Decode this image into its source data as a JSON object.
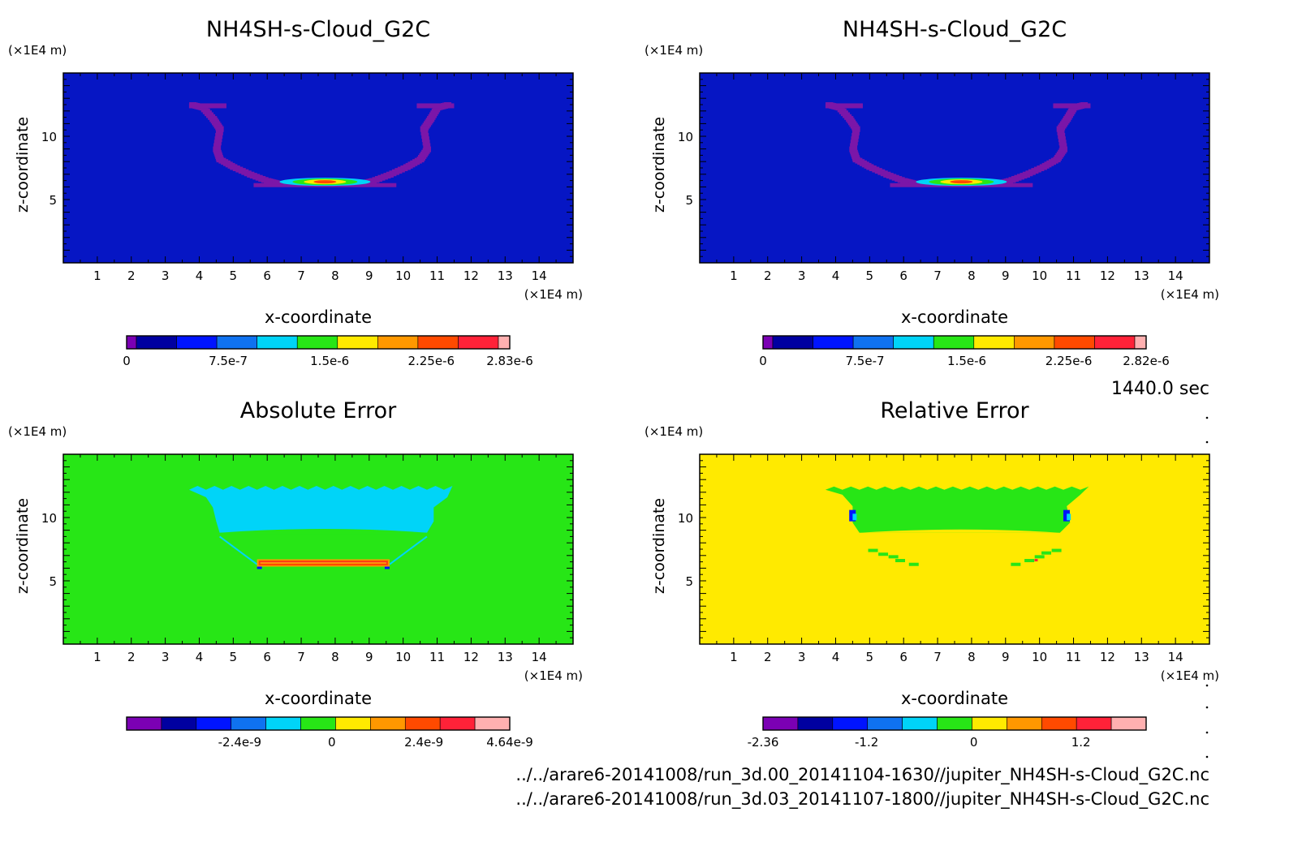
{
  "time_label": "1440.0 sec",
  "files": [
    "../../arare6-20141008/run_3d.00_20141104-1630//jupiter_NH4SH-s-Cloud_G2C.nc",
    "../../arare6-20141008/run_3d.03_20141107-1800//jupiter_NH4SH-s-Cloud_G2C.nc"
  ],
  "colors": {
    "palette": [
      "#7b00b4",
      "#0000a0",
      "#0014ff",
      "#0f72f0",
      "#00d4f8",
      "#27e616",
      "#ffea00",
      "#ff9800",
      "#ff4a00",
      "#ff2238",
      "#ffb0b0"
    ],
    "background_blue": "#0616c4",
    "background_green": "#27e616",
    "background_yellow": "#ffea00",
    "cloud_purple": "#7b16a8",
    "cloud_cyan": "#00d4f8"
  },
  "chart_data": [
    {
      "type": "heatmap",
      "title": "NH4SH-s-Cloud_G2C",
      "xlabel": "x-coordinate",
      "ylabel": "z-coordinate",
      "x_unit": "(×1E4 m)",
      "z_unit": "(×1E4 m)",
      "xlim": [
        0,
        15
      ],
      "ylim": [
        0,
        15
      ],
      "xticks": [
        1,
        2,
        3,
        4,
        5,
        6,
        7,
        8,
        9,
        10,
        11,
        12,
        13,
        14
      ],
      "yticks": [
        5,
        10
      ],
      "background": "background_blue",
      "colorbar": {
        "labels": [
          "0",
          "7.5e-7",
          "1.5e-6",
          "2.25e-6",
          "2.83e-6"
        ],
        "positions": [
          0,
          7.5e-07,
          1.5e-06,
          2.25e-06,
          2.83e-06
        ],
        "min": 0,
        "max": 2.83e-06
      }
    },
    {
      "type": "heatmap",
      "title": "NH4SH-s-Cloud_G2C",
      "xlabel": "x-coordinate",
      "ylabel": "z-coordinate",
      "x_unit": "(×1E4 m)",
      "z_unit": "(×1E4 m)",
      "xlim": [
        0,
        15
      ],
      "ylim": [
        0,
        15
      ],
      "xticks": [
        1,
        2,
        3,
        4,
        5,
        6,
        7,
        8,
        9,
        10,
        11,
        12,
        13,
        14
      ],
      "yticks": [
        5,
        10
      ],
      "background": "background_blue",
      "colorbar": {
        "labels": [
          "0",
          "7.5e-7",
          "1.5e-6",
          "2.25e-6",
          "2.82e-6"
        ],
        "positions": [
          0,
          7.5e-07,
          1.5e-06,
          2.25e-06,
          2.82e-06
        ],
        "min": 0,
        "max": 2.82e-06
      }
    },
    {
      "type": "heatmap",
      "title": "Absolute Error",
      "xlabel": "x-coordinate",
      "ylabel": "z-coordinate",
      "x_unit": "(×1E4 m)",
      "z_unit": "(×1E4 m)",
      "xlim": [
        0,
        15
      ],
      "ylim": [
        0,
        15
      ],
      "xticks": [
        1,
        2,
        3,
        4,
        5,
        6,
        7,
        8,
        9,
        10,
        11,
        12,
        13,
        14
      ],
      "yticks": [
        5,
        10
      ],
      "background": "background_green",
      "colorbar": {
        "labels": [
          "-2.4e-9",
          "0",
          "2.4e-9",
          "4.64e-9"
        ],
        "positions": [
          -2.4e-09,
          0,
          2.4e-09,
          4.64e-09
        ],
        "min": -5.35e-09,
        "max": 4.64e-09
      }
    },
    {
      "type": "heatmap",
      "title": "Relative Error",
      "xlabel": "x-coordinate",
      "ylabel": "z-coordinate",
      "x_unit": "(×1E4 m)",
      "z_unit": "(×1E4 m)",
      "xlim": [
        0,
        15
      ],
      "ylim": [
        0,
        15
      ],
      "xticks": [
        1,
        2,
        3,
        4,
        5,
        6,
        7,
        8,
        9,
        10,
        11,
        12,
        13,
        14
      ],
      "yticks": [
        5,
        10
      ],
      "background": "background_yellow",
      "colorbar": {
        "labels": [
          "-2.36",
          "-1.2",
          "0",
          "1.2"
        ],
        "positions": [
          -2.36,
          -1.2,
          0,
          1.2
        ],
        "min": -2.36,
        "max": 1.93
      }
    }
  ]
}
